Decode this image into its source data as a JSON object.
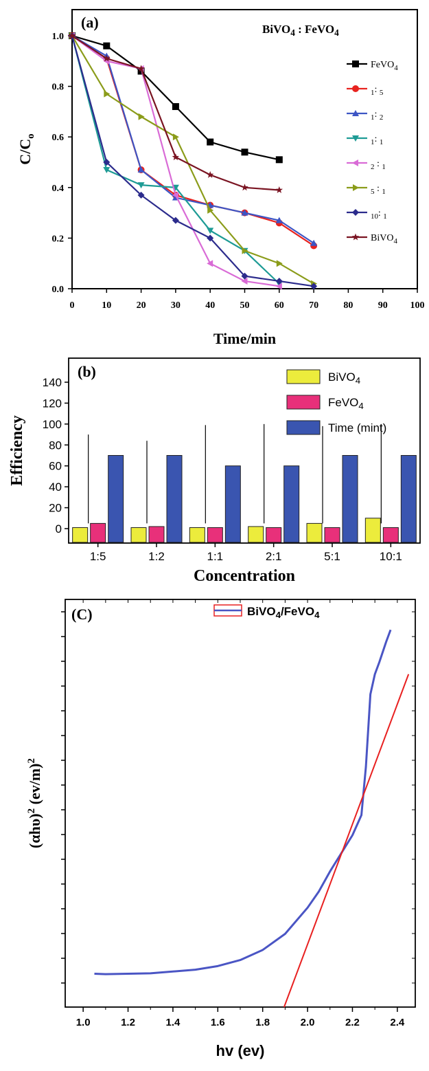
{
  "figure": {
    "panels": [
      {
        "id": "a",
        "label": "(a)"
      },
      {
        "id": "b",
        "label": "(b)"
      },
      {
        "id": "c",
        "label": "(C)"
      }
    ]
  },
  "chart_data": [
    {
      "type": "line",
      "panel_label": "(a)",
      "legend_title": "BiVO4 : FeVO4",
      "xlabel": "Time/min",
      "ylabel": "C/Co",
      "xlim": [
        0,
        100
      ],
      "ylim": [
        0.0,
        1.05
      ],
      "x_ticks": [
        0,
        10,
        20,
        30,
        40,
        50,
        60,
        70,
        80,
        90,
        100
      ],
      "y_ticks": [
        0.0,
        0.2,
        0.4,
        0.6,
        0.8,
        1.0
      ],
      "legend_position": "top-right",
      "grid": false,
      "series": [
        {
          "name": "FeVO4",
          "color": "#000000",
          "marker": "square",
          "x": [
            0,
            10,
            20,
            30,
            40,
            50,
            60
          ],
          "y": [
            1.0,
            0.96,
            0.86,
            0.72,
            0.58,
            0.54,
            0.51
          ]
        },
        {
          "name": "1: 5",
          "color": "#e8231f",
          "marker": "circle",
          "x": [
            0,
            10,
            20,
            30,
            40,
            50,
            60,
            70
          ],
          "y": [
            1.0,
            0.91,
            0.47,
            0.37,
            0.33,
            0.3,
            0.26,
            0.17
          ]
        },
        {
          "name": "1: 2",
          "color": "#3d55c4",
          "marker": "triangle-up",
          "x": [
            0,
            10,
            20,
            30,
            40,
            50,
            60,
            70
          ],
          "y": [
            1.0,
            0.92,
            0.47,
            0.36,
            0.33,
            0.3,
            0.27,
            0.18
          ]
        },
        {
          "name": "1: 1",
          "color": "#1e9b95",
          "marker": "triangle-down",
          "x": [
            0,
            10,
            20,
            30,
            40,
            50,
            60
          ],
          "y": [
            1.0,
            0.47,
            0.41,
            0.4,
            0.23,
            0.15,
            0.02
          ]
        },
        {
          "name": "2 : 1",
          "color": "#d96bd6",
          "marker": "triangle-left",
          "x": [
            0,
            10,
            20,
            30,
            40,
            50,
            60
          ],
          "y": [
            1.0,
            0.9,
            0.87,
            0.37,
            0.1,
            0.03,
            0.01
          ]
        },
        {
          "name": "5 : 1",
          "color": "#8b9c1a",
          "marker": "triangle-right",
          "x": [
            0,
            10,
            20,
            30,
            40,
            50,
            60,
            70
          ],
          "y": [
            1.0,
            0.77,
            0.68,
            0.6,
            0.31,
            0.15,
            0.1,
            0.02
          ]
        },
        {
          "name": "10: 1",
          "color": "#2b2b8c",
          "marker": "diamond",
          "x": [
            0,
            10,
            20,
            30,
            40,
            50,
            60,
            70
          ],
          "y": [
            1.0,
            0.5,
            0.37,
            0.27,
            0.2,
            0.05,
            0.03,
            0.01
          ]
        },
        {
          "name": "BiVO4",
          "color": "#7a1422",
          "marker": "star",
          "x": [
            0,
            10,
            20,
            30,
            40,
            50,
            60
          ],
          "y": [
            1.0,
            0.91,
            0.87,
            0.52,
            0.45,
            0.4,
            0.39
          ]
        }
      ]
    },
    {
      "type": "bar",
      "panel_label": "(b)",
      "xlabel": "Concentration",
      "ylabel": "Efficiency",
      "ylim": [
        -5,
        148
      ],
      "y_ticks": [
        0,
        20,
        40,
        60,
        80,
        100,
        120,
        140
      ],
      "legend_position": "top-right",
      "grid": false,
      "categories": [
        "1:5",
        "1:2",
        "1:1",
        "2:1",
        "5:1",
        "10:1"
      ],
      "series": [
        {
          "name": "BiVO4",
          "color": "#ecec3c",
          "values": [
            1,
            1,
            1,
            2,
            5,
            10
          ]
        },
        {
          "name": "FeVO4",
          "color": "#e8307a",
          "values": [
            5,
            2,
            1,
            1,
            1,
            1
          ]
        },
        {
          "name": "Time (mint)",
          "color": "#3a55b0",
          "values": [
            70,
            70,
            60,
            60,
            70,
            70
          ]
        }
      ],
      "efficiency_lines": [
        90,
        84,
        99,
        100,
        98,
        100
      ]
    },
    {
      "type": "line",
      "panel_label": "(C)",
      "xlabel": "hv (ev)",
      "ylabel": "(αhυ)2 (ev/m)2",
      "xlim": [
        0.92,
        2.48
      ],
      "x_ticks": [
        1.0,
        1.2,
        1.4,
        1.6,
        1.8,
        2.0,
        2.2,
        2.4
      ],
      "y_tick_labels_shown": false,
      "legend_position": "top-right",
      "grid": false,
      "series": [
        {
          "name": "BiVO4/FeVO4",
          "color": "#4a55c4",
          "x": [
            1.05,
            1.1,
            1.3,
            1.5,
            1.6,
            1.7,
            1.8,
            1.9,
            2.0,
            2.05,
            2.1,
            2.15,
            2.2,
            2.24,
            2.26,
            2.28,
            2.3,
            2.32,
            2.35,
            2.37
          ],
          "y": [
            0.6,
            0.5,
            0.7,
            1.6,
            2.5,
            4.0,
            6.5,
            10.5,
            17,
            21,
            26,
            30.5,
            35,
            40,
            52,
            70,
            75,
            78,
            83,
            86
          ]
        },
        {
          "name": "",
          "color": "#e82020",
          "role": "linear-fit",
          "x": [
            1.89,
            2.45
          ],
          "y": [
            -8.5,
            75
          ]
        }
      ],
      "legend_entries": [
        "BiVO4/FeVO4"
      ]
    }
  ]
}
